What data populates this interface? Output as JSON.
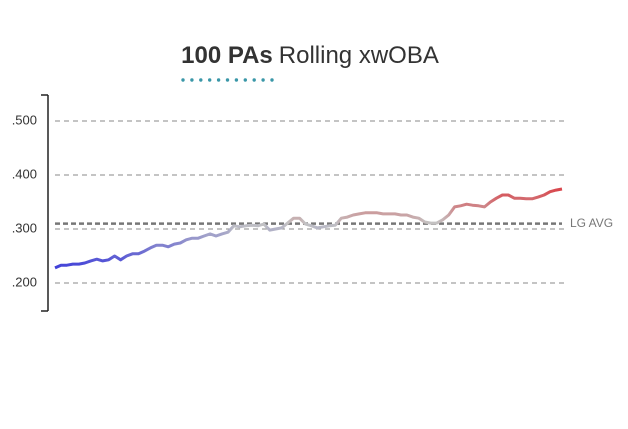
{
  "chart_data": {
    "type": "line",
    "title_bold": "100 PAs",
    "title": "Rolling xwOBA",
    "series": [
      {
        "name": "xwOBA",
        "values": [
          0.228,
          0.233,
          0.233,
          0.235,
          0.235,
          0.237,
          0.241,
          0.244,
          0.241,
          0.243,
          0.25,
          0.243,
          0.25,
          0.254,
          0.254,
          0.259,
          0.265,
          0.27,
          0.27,
          0.267,
          0.272,
          0.274,
          0.28,
          0.283,
          0.283,
          0.287,
          0.291,
          0.287,
          0.291,
          0.294,
          0.306,
          0.304,
          0.306,
          0.307,
          0.306,
          0.309,
          0.298,
          0.3,
          0.302,
          0.311,
          0.32,
          0.32,
          0.309,
          0.306,
          0.302,
          0.304,
          0.306,
          0.307,
          0.32,
          0.322,
          0.326,
          0.328,
          0.33,
          0.33,
          0.33,
          0.328,
          0.328,
          0.328,
          0.326,
          0.326,
          0.322,
          0.32,
          0.313,
          0.311,
          0.311,
          0.317,
          0.326,
          0.341,
          0.343,
          0.346,
          0.344,
          0.343,
          0.341,
          0.35,
          0.357,
          0.363,
          0.363,
          0.357,
          0.357,
          0.356,
          0.356,
          0.359,
          0.363,
          0.369,
          0.372,
          0.374
        ]
      }
    ],
    "color_low": "#3f3fd9",
    "color_mid": "#c4c4c4",
    "color_high": "#d9464c",
    "ylim": [
      0.15,
      0.55
    ],
    "yticks": [
      {
        "value": 0.2,
        "label": ".200"
      },
      {
        "value": 0.3,
        "label": ".300"
      },
      {
        "value": 0.4,
        "label": ".400"
      },
      {
        "value": 0.5,
        "label": ".500"
      }
    ],
    "grid": true,
    "reference_line": {
      "value": 0.31,
      "label": "LG AVG"
    }
  }
}
